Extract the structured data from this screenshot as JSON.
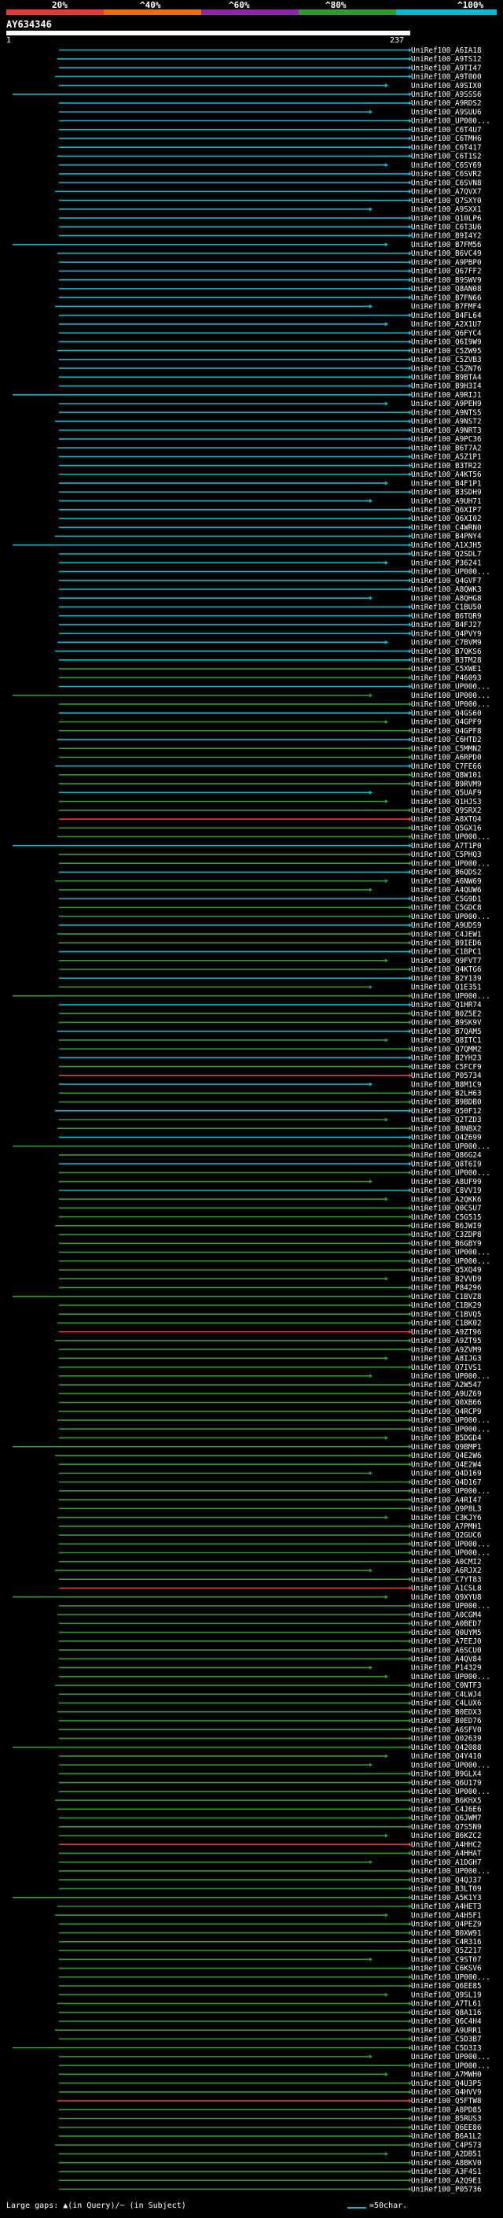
{
  "legend": {
    "labels": [
      "20%",
      "^40%",
      "^60%",
      "^80%",
      "^100%"
    ],
    "colors": [
      "#e53935",
      "#ef6c00",
      "#8e24aa",
      "#2e9d2e",
      "#00bcd4"
    ]
  },
  "query": {
    "name": "AY634346",
    "start": "1",
    "end": "237"
  },
  "footer": {
    "gap_note": "Large gaps: ▲(in Query)/~ (in Subject)",
    "scale": "=50char."
  },
  "hits": [
    "UniRef100_A6IA18",
    "UniRef100_A9TS12",
    "UniRef100_A9TI47",
    "UniRef100_A9T000",
    "UniRef100_A9SIX0",
    "UniRef100_A9SSS6",
    "UniRef100_A9RDS2",
    "UniRef100_A9SUU6",
    "UniRef100_UP000...",
    "UniRef100_C6T4U7",
    "UniRef100_C6TMH6",
    "UniRef100_C6T417",
    "UniRef100_C6T1S2",
    "UniRef100_C6SY69",
    "UniRef100_C6SVR2",
    "UniRef100_C6SVN8",
    "UniRef100_A7QVX7",
    "UniRef100_Q7SXY0",
    "UniRef100_A9SXX1",
    "UniRef100_Q10LP6",
    "UniRef100_C6T3U6",
    "UniRef100_B9I4Y2",
    "UniRef100_B7FM56",
    "UniRef100_B6VC49",
    "UniRef100_A9PBP0",
    "UniRef100_Q67FF2",
    "UniRef100_B9SWV9",
    "UniRef100_Q8AN08",
    "UniRef100_B7FN66",
    "UniRef100_B7FMF4",
    "UniRef100_B4FL64",
    "UniRef100_A2X1U7",
    "UniRef100_Q6FYC4",
    "UniRef100_Q6I9W9",
    "UniRef100_C5ZW95",
    "UniRef100_C5ZVB3",
    "UniRef100_C5ZN76",
    "UniRef100_B9BTA4",
    "UniRef100_B9H3I4",
    "UniRef100_A9RIJ1",
    "UniRef100_A9PEH9",
    "UniRef100_A9NTS5",
    "UniRef100_A9NST2",
    "UniRef100_A9NRT3",
    "UniRef100_A9PC36",
    "UniRef100_B6T7A2",
    "UniRef100_A5Z1P1",
    "UniRef100_B3TR22",
    "UniRef100_A4KT56",
    "UniRef100_B4F1P1",
    "UniRef100_B3SDH9",
    "UniRef100_A9UH71",
    "UniRef100_Q6XIP7",
    "UniRef100_Q6XI02",
    "UniRef100_C4WRN0",
    "UniRef100_B4PNY4",
    "UniRef100_A1XJH5",
    "UniRef100_Q2SDL7",
    "UniRef100_P36241",
    "UniRef100_UP000...",
    "UniRef100_Q4GVF7",
    "UniRef100_A8QWK3",
    "UniRef100_A8QHG8",
    "UniRef100_C1BU50",
    "UniRef100_B6TQR9",
    "UniRef100_B4FJ27",
    "UniRef100_Q4PVY9",
    "UniRef100_C7BVM9",
    "UniRef100_B7QKS6",
    "UniRef100_B3TM28",
    "UniRef100_C5XWE1",
    "UniRef100_P46093",
    "UniRef100_UP000...",
    "UniRef100_UP000...",
    "UniRef100_UP000...",
    "UniRef100_Q4GS60",
    "UniRef100_Q4GPF9",
    "UniRef100_Q4GPF8",
    "UniRef100_C6HTD2",
    "UniRef100_C5MMN2",
    "UniRef100_A6RPD0",
    "UniRef100_C7FE66",
    "UniRef100_Q8W101",
    "UniRef100_B9RVM9",
    "UniRef100_Q5UAF9",
    "UniRef100_Q1HJS3",
    "UniRef100_Q9SRX2",
    "UniRef100_A8XTQ4",
    "UniRef100_Q5GX16",
    "UniRef100_UP000...",
    "UniRef100_A7T1P0",
    "UniRef100_C5PHQ3",
    "UniRef100_UP000...",
    "UniRef100_B6QDS2",
    "UniRef100_A6NW69",
    "UniRef100_A4QUW6",
    "UniRef100_C5G9D1",
    "UniRef100_C5GDC8",
    "UniRef100_UP000...",
    "UniRef100_A9UDS9",
    "UniRef100_C4JEW1",
    "UniRef100_B9IED6",
    "UniRef100_C1BPC1",
    "UniRef100_Q9FVT7",
    "UniRef100_Q4KTG6",
    "UniRef100_B2Y139",
    "UniRef100_Q1E351",
    "UniRef100_UP000...",
    "UniRef100_Q1HR74",
    "UniRef100_B0Z5E2",
    "UniRef100_B9SK9V",
    "UniRef100_B7QAM5",
    "UniRef100_Q8ITC1",
    "UniRef100_Q7QMM2",
    "UniRef100_B2YH23",
    "UniRef100_C5FCF9",
    "UniRef100_P05734",
    "UniRef100_B8M1C9",
    "UniRef100_B2LH63",
    "UniRef100_B9BDB0",
    "UniRef100_Q50F12",
    "UniRef100_Q2TZD3",
    "UniRef100_B8NBX2",
    "UniRef100_Q4Z699",
    "UniRef100_UP000...",
    "UniRef100_Q86G24",
    "UniRef100_Q8T6I9",
    "UniRef100_UP000...",
    "UniRef100_A8UF99",
    "UniRef100_C8VV19",
    "UniRef100_A2QKK6",
    "UniRef100_Q0CSU7",
    "UniRef100_C5G515",
    "UniRef100_B6JWI9",
    "UniRef100_C3ZDP8",
    "UniRef100_B6GBY9",
    "UniRef100_UP000...",
    "UniRef100_UP000...",
    "UniRef100_Q5XQ49",
    "UniRef100_B2VVD9",
    "UniRef100_P84296",
    "UniRef100_C1BVZ8",
    "UniRef100_C1BK29",
    "UniRef100_C1BVQ5",
    "UniRef100_C1BK02",
    "UniRef100_A9ZT96",
    "UniRef100_A9ZT95",
    "UniRef100_A9ZVM9",
    "UniRef100_A8IJG3",
    "UniRef100_Q7IVS1",
    "UniRef100_UP000...",
    "UniRef100_A2W547",
    "UniRef100_A9UZ69",
    "UniRef100_Q0XB66",
    "UniRef100_Q4RCP9",
    "UniRef100_UP000...",
    "UniRef100_UP000...",
    "UniRef100_B5DGD4",
    "UniRef100_Q9BMP1",
    "UniRef100_Q4E2W6",
    "UniRef100_Q4E2W4",
    "UniRef100_Q4D169",
    "UniRef100_Q4D167",
    "UniRef100_UP000...",
    "UniRef100_A4RI47",
    "UniRef100_Q9P8L3",
    "UniRef100_C3KJY6",
    "UniRef100_A7PMH1",
    "UniRef100_Q2GUC6",
    "UniRef100_UP000...",
    "UniRef100_UP000...",
    "UniRef100_A0CMI2",
    "UniRef100_A6RJX2",
    "UniRef100_C7YT83",
    "UniRef100_A1CSL8",
    "UniRef100_Q9XYU8",
    "UniRef100_UP000...",
    "UniRef100_A0CGM4",
    "UniRef100_A0BED7",
    "UniRef100_Q0UYM5",
    "UniRef100_A7EEJ0",
    "UniRef100_A6SCU0",
    "UniRef100_A4QV84",
    "UniRef100_P14329",
    "UniRef100_UP000...",
    "UniRef100_C0NTF3",
    "UniRef100_C4LWJ4",
    "UniRef100_C4LUX6",
    "UniRef100_B0EDX3",
    "UniRef100_B0ED76",
    "UniRef100_A6SFV0",
    "UniRef100_Q02639",
    "UniRef100_Q42088",
    "UniRef100_Q4Y410",
    "UniRef100_UP000...",
    "UniRef100_B9GLX4",
    "UniRef100_Q6U179",
    "UniRef100_UP000...",
    "UniRef100_B6KHX5",
    "UniRef100_C4J6E6",
    "UniRef100_Q6JWM7",
    "UniRef100_Q7S5N9",
    "UniRef100_B6KZC2",
    "UniRef100_A4HHC2",
    "UniRef100_A4HHAT",
    "UniRef100_A1DGH7",
    "UniRef100_UP000...",
    "UniRef100_Q4QJ37",
    "UniRef100_B3LT09",
    "UniRef100_A5K1Y3",
    "UniRef100_A4HET3",
    "UniRef100_A4H5F1",
    "UniRef100_Q4PEZ9",
    "UniRef100_B0XW91",
    "UniRef100_C4R316",
    "UniRef100_Q5Z217",
    "UniRef100_C9ST07",
    "UniRef100_C6KSV6",
    "UniRef100_UP000...",
    "UniRef100_Q6EE85",
    "UniRef100_Q9SL19",
    "UniRef100_A7TL61",
    "UniRef100_Q8A116",
    "UniRef100_Q6C4H4",
    "UniRef100_A9URR1",
    "UniRef100_C5D3B7",
    "UniRef100_C5D3I3",
    "UniRef100_UP000...",
    "UniRef100_UP000...",
    "UniRef100_A7MWH0",
    "UniRef100_Q4U3P5",
    "UniRef100_Q4HVV9",
    "UniRef100_Q5FTW8",
    "UniRef100_A8PD85",
    "UniRef100_B5RUS3",
    "UniRef100_Q6EE86",
    "UniRef100_B6A1L2",
    "UniRef100_C4P573",
    "UniRef100_A2DB51",
    "UniRef100_A8BKV0",
    "UniRef100_A3F4S1",
    "UniRef100_A2Q9E1",
    "UniRef100_P05736"
  ]
}
